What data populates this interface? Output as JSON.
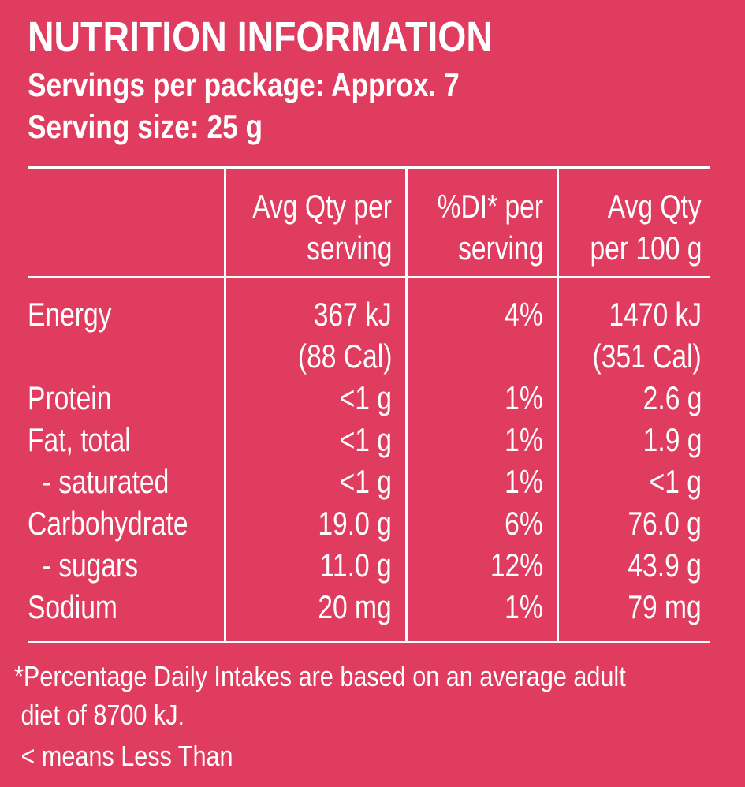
{
  "header": {
    "title": "NUTRITION INFORMATION",
    "servings": "Servings per package: Approx. 7",
    "serving_size": "Serving size: 25 g"
  },
  "table": {
    "columns": [
      [
        "Avg Qty per",
        "serving"
      ],
      [
        "%DI* per",
        "serving"
      ],
      [
        "Avg Qty",
        "per 100 g"
      ]
    ],
    "rows": [
      [
        [
          "Energy"
        ],
        [
          "367 kJ",
          "(88 Cal)"
        ],
        [
          "4%"
        ],
        [
          "1470 kJ",
          "(351 Cal)"
        ]
      ],
      [
        [
          "Protein"
        ],
        [
          "<1 g"
        ],
        [
          "1%"
        ],
        [
          "2.6 g"
        ]
      ],
      [
        [
          "Fat, total"
        ],
        [
          "<1 g"
        ],
        [
          "1%"
        ],
        [
          "1.9 g"
        ]
      ],
      [
        [
          "  - saturated"
        ],
        [
          "<1 g"
        ],
        [
          "1%"
        ],
        [
          "<1 g"
        ]
      ],
      [
        [
          "Carbohydrate"
        ],
        [
          "19.0 g"
        ],
        [
          "6%"
        ],
        [
          "76.0 g"
        ]
      ],
      [
        [
          "  - sugars"
        ],
        [
          "11.0 g"
        ],
        [
          "12%"
        ],
        [
          "43.9 g"
        ]
      ],
      [
        [
          "Sodium"
        ],
        [
          "20 mg"
        ],
        [
          "1%"
        ],
        [
          "79 mg"
        ]
      ]
    ]
  },
  "footnotes": [
    "*Percentage Daily Intakes are based on an average adult",
    " diet of 8700 kJ.",
    " < means Less Than"
  ]
}
